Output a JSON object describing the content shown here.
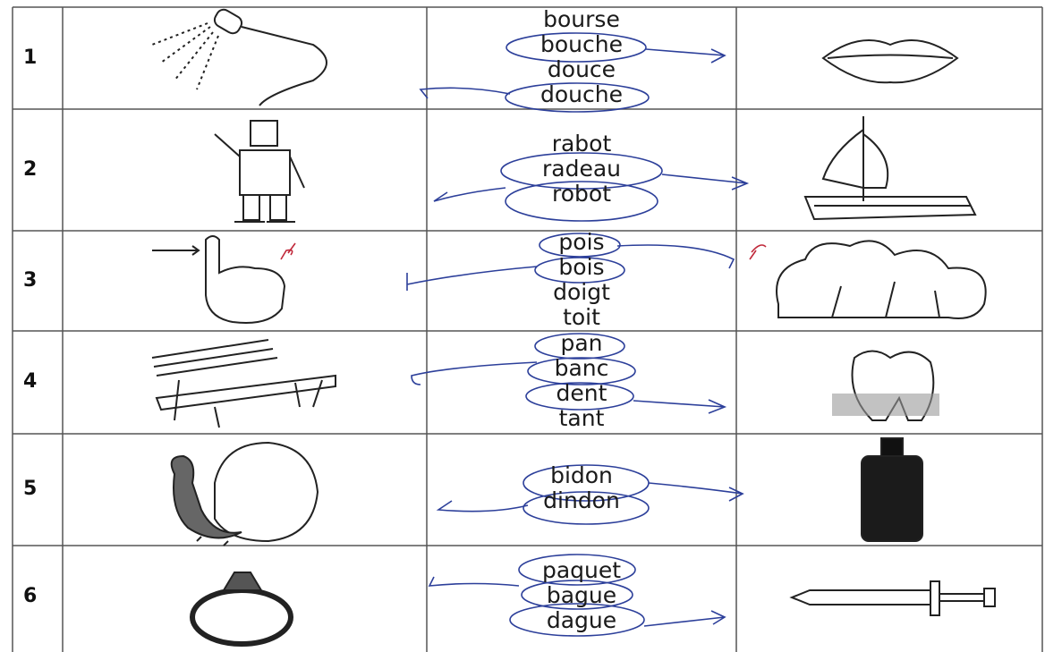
{
  "rows": [
    {
      "number": "1",
      "words": [
        "bourse",
        "bouche",
        "douce",
        "douche"
      ]
    },
    {
      "number": "2",
      "words": [
        "rabot",
        "radeau",
        "robot"
      ]
    },
    {
      "number": "3",
      "words": [
        "pois",
        "bois",
        "doigt",
        "toit"
      ]
    },
    {
      "number": "4",
      "words": [
        "pan",
        "banc",
        "dent",
        "tant"
      ]
    },
    {
      "number": "5",
      "words": [
        "bidon",
        "dindon"
      ]
    },
    {
      "number": "6",
      "words": [
        "paquet",
        "bague",
        "dague"
      ]
    }
  ]
}
